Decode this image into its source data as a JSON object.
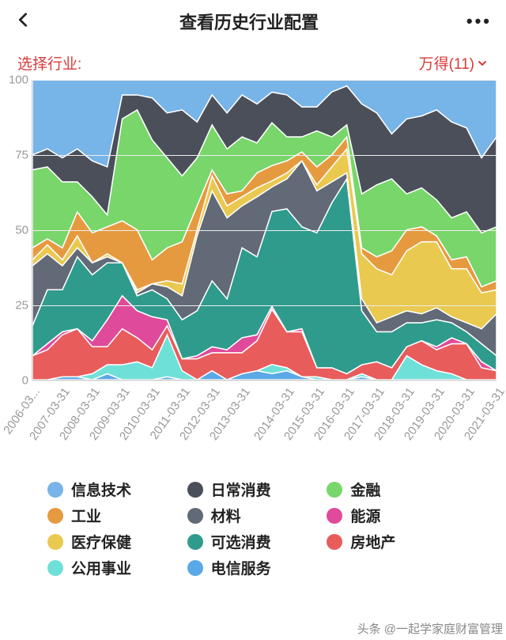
{
  "header": {
    "title": "查看历史行业配置"
  },
  "selector": {
    "label": "选择行业:",
    "value": "万得(11)",
    "color": "#d93a3a"
  },
  "chart": {
    "type": "stacked-area",
    "ylim": [
      0,
      100
    ],
    "yticks": [
      0,
      25,
      50,
      75,
      100
    ],
    "ytick_color": "#999999",
    "grid_color": "#eeeeee",
    "fontsize_axis": 15,
    "x_categories": [
      "2006-03...",
      "2007-03-31",
      "2008-03-31",
      "2009-03-31",
      "2010-03-31",
      "2011-03-31",
      "2012-03-31",
      "2013-03-31",
      "2014-03-31",
      "2015-03-31",
      "2016-03-31",
      "2017-03-31",
      "2018-03-31",
      "2019-03-31",
      "2020-03-31",
      "2021-03-31"
    ],
    "series": [
      {
        "name": "电信服务",
        "color": "#5aa9e6",
        "values": [
          0,
          0,
          1,
          1,
          0,
          2,
          0,
          0,
          0,
          1,
          0,
          0,
          3,
          0,
          2,
          3,
          2,
          3,
          1,
          0,
          0,
          0,
          1,
          0,
          0,
          0,
          0,
          0,
          0,
          0,
          0,
          0
        ]
      },
      {
        "name": "公用事业",
        "color": "#6fe0d8",
        "values": [
          0,
          0,
          0,
          0,
          2,
          3,
          5,
          6,
          4,
          14,
          3,
          0,
          0,
          0,
          0,
          0,
          3,
          1,
          0,
          1,
          0,
          0,
          1,
          0,
          0,
          8,
          5,
          3,
          2,
          0,
          0,
          0
        ]
      },
      {
        "name": "房地产",
        "color": "#e85c5c",
        "values": [
          8,
          10,
          14,
          16,
          9,
          6,
          12,
          8,
          6,
          3,
          4,
          7,
          6,
          9,
          7,
          10,
          18,
          12,
          15,
          3,
          4,
          2,
          3,
          6,
          4,
          3,
          8,
          7,
          10,
          12,
          4,
          3
        ]
      },
      {
        "name": "能源",
        "color": "#e04a9a",
        "values": [
          0,
          2,
          1,
          0,
          2,
          9,
          11,
          9,
          11,
          2,
          0,
          1,
          2,
          1,
          5,
          2,
          1,
          0,
          1,
          0,
          0,
          0,
          0,
          0,
          0,
          0,
          0,
          1,
          2,
          0,
          2,
          0
        ]
      },
      {
        "name": "可选消费",
        "color": "#2f9b8c",
        "values": [
          10,
          18,
          14,
          24,
          22,
          19,
          11,
          5,
          9,
          7,
          13,
          15,
          22,
          17,
          30,
          26,
          31,
          41,
          34,
          45,
          55,
          65,
          18,
          10,
          12,
          8,
          6,
          9,
          5,
          4,
          6,
          5
        ]
      },
      {
        "name": "材料",
        "color": "#626a77",
        "values": [
          20,
          12,
          8,
          3,
          4,
          2,
          0,
          1,
          2,
          4,
          8,
          25,
          30,
          27,
          14,
          20,
          8,
          10,
          22,
          14,
          7,
          2,
          4,
          3,
          5,
          4,
          3,
          4,
          2,
          3,
          5,
          14
        ]
      },
      {
        "name": "医疗保健",
        "color": "#e9c94f",
        "values": [
          2,
          3,
          2,
          4,
          0,
          1,
          0,
          1,
          0,
          2,
          4,
          2,
          5,
          4,
          3,
          3,
          2,
          2,
          0,
          2,
          5,
          8,
          15,
          18,
          14,
          20,
          24,
          22,
          16,
          18,
          12,
          8
        ]
      },
      {
        "name": "工业",
        "color": "#e69a3f",
        "values": [
          4,
          2,
          4,
          8,
          10,
          9,
          14,
          20,
          8,
          11,
          14,
          8,
          2,
          4,
          2,
          5,
          5,
          4,
          3,
          6,
          4,
          4,
          2,
          4,
          8,
          7,
          5,
          2,
          3,
          4,
          2,
          3
        ]
      },
      {
        "name": "金融",
        "color": "#78d66a",
        "values": [
          26,
          24,
          22,
          10,
          12,
          4,
          34,
          40,
          40,
          30,
          22,
          16,
          15,
          15,
          18,
          10,
          14,
          8,
          5,
          12,
          6,
          4,
          18,
          24,
          24,
          12,
          13,
          12,
          14,
          15,
          18,
          18
        ]
      },
      {
        "name": "日常消费",
        "color": "#4a4f5a",
        "values": [
          5,
          6,
          8,
          11,
          12,
          16,
          8,
          5,
          14,
          15,
          22,
          12,
          10,
          12,
          14,
          13,
          10,
          14,
          10,
          8,
          15,
          13,
          30,
          24,
          15,
          25,
          24,
          30,
          32,
          28,
          25,
          30
        ]
      },
      {
        "name": "信息技术",
        "color": "#77b4e8",
        "values": [
          25,
          23,
          26,
          23,
          27,
          29,
          5,
          5,
          6,
          11,
          10,
          14,
          5,
          11,
          5,
          8,
          4,
          5,
          9,
          9,
          4,
          2,
          8,
          11,
          18,
          13,
          12,
          10,
          14,
          16,
          26,
          19
        ]
      }
    ],
    "stroke": "#ffffff",
    "stroke_width": 1.5
  },
  "legend": {
    "fontsize": 19,
    "items": [
      {
        "label": "信息技术",
        "color": "#77b4e8"
      },
      {
        "label": "日常消费",
        "color": "#4a4f5a"
      },
      {
        "label": "金融",
        "color": "#78d66a"
      },
      {
        "label": "工业",
        "color": "#e69a3f"
      },
      {
        "label": "材料",
        "color": "#626a77"
      },
      {
        "label": "能源",
        "color": "#e04a9a"
      },
      {
        "label": "医疗保健",
        "color": "#e9c94f"
      },
      {
        "label": "可选消费",
        "color": "#2f9b8c"
      },
      {
        "label": "房地产",
        "color": "#e85c5c"
      },
      {
        "label": "公用事业",
        "color": "#6fe0d8"
      },
      {
        "label": "电信服务",
        "color": "#5aa9e6"
      }
    ]
  },
  "watermark": "头条 @一起学家庭财富管理"
}
